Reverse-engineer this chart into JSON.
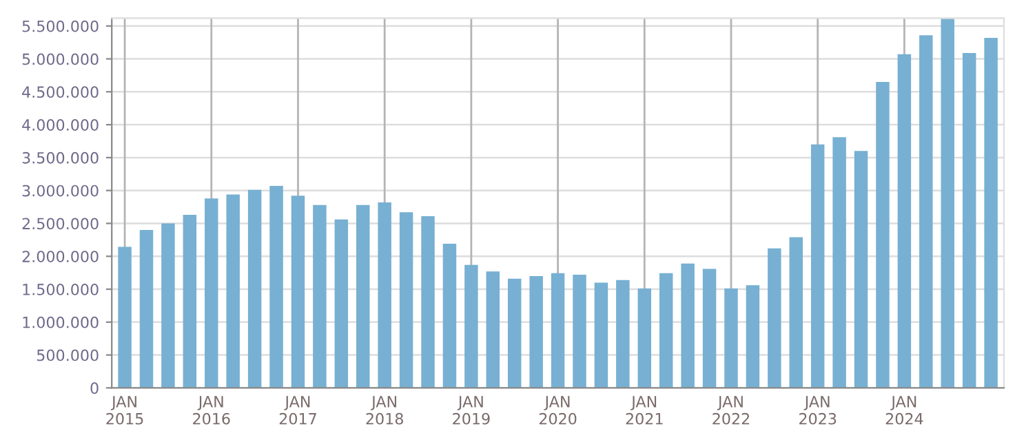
{
  "chart_data": {
    "type": "bar",
    "categories": [
      "JAN\n2015",
      null,
      null,
      null,
      "JAN\n2016",
      null,
      null,
      null,
      "JAN\n2017",
      null,
      null,
      null,
      "JAN\n2018",
      null,
      null,
      null,
      "JAN\n2019",
      null,
      null,
      null,
      "JAN\n2020",
      null,
      null,
      null,
      "JAN\n2021",
      null,
      null,
      null,
      "JAN\n2022",
      null,
      null,
      null,
      "JAN\n2023",
      null,
      null,
      null,
      "JAN\n2024",
      null,
      null,
      null,
      null
    ],
    "values": [
      2144000,
      2400000,
      2500000,
      2630000,
      2880000,
      2940000,
      3010000,
      3070000,
      2920000,
      2780000,
      2560000,
      2780000,
      2820000,
      2670000,
      2610000,
      2190000,
      1870000,
      1770000,
      1660000,
      1700000,
      1745000,
      1720000,
      1600000,
      1640000,
      1510000,
      1745000,
      1890000,
      1810000,
      1510000,
      1560000,
      2120000,
      2290000,
      3700000,
      3810000,
      3600000,
      4650000,
      5070000,
      5360000,
      5610000,
      5090000,
      5320000
    ],
    "color": "#77b0d2",
    "ylim": [
      0,
      5620000
    ],
    "yticks": [
      {
        "value": 0,
        "label": "0"
      },
      {
        "value": 500000,
        "label": "500.000"
      },
      {
        "value": 1000000,
        "label": "1.000.000"
      },
      {
        "value": 1500000,
        "label": "1.500.000"
      },
      {
        "value": 2000000,
        "label": "2.000.000"
      },
      {
        "value": 2500000,
        "label": "2.500.000"
      },
      {
        "value": 3000000,
        "label": "3.000.000"
      },
      {
        "value": 3500000,
        "label": "3.500.000"
      },
      {
        "value": 4000000,
        "label": "4.000.000"
      },
      {
        "value": 4500000,
        "label": "4.500.000"
      },
      {
        "value": 5000000,
        "label": "5.000.000"
      },
      {
        "value": 5500000,
        "label": "5.500.000"
      }
    ],
    "grid": true,
    "legend": false
  }
}
